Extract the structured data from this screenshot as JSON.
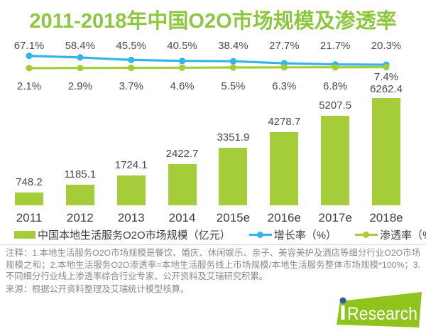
{
  "title": "2011-2018年中国O2O市场规模及渗透率",
  "chart_data": {
    "type": "bar",
    "title": "2011-2018年中国O2O市场规模及渗透率",
    "categories": [
      "2011",
      "2012",
      "2013",
      "2014",
      "2015e",
      "2016e",
      "2017e",
      "2018e"
    ],
    "series": [
      {
        "name": "中国本地生活服务O2O市场规模（亿元）",
        "type": "bar",
        "unit": "亿元",
        "color": "#a5cd39",
        "values": [
          748.2,
          1185.1,
          1724.1,
          2422.7,
          3351.9,
          4278.7,
          5207.5,
          6262.4
        ]
      },
      {
        "name": "增长率（%）",
        "type": "line",
        "unit": "%",
        "color": "#35b4e7",
        "values": [
          67.1,
          58.4,
          45.5,
          40.5,
          38.4,
          27.7,
          21.7,
          20.3
        ]
      },
      {
        "name": "渗透率（%）",
        "type": "line",
        "unit": "%",
        "color": "#a5cd39",
        "values": [
          2.1,
          2.9,
          3.7,
          4.6,
          5.5,
          6.3,
          6.8,
          7.4
        ]
      }
    ],
    "value_labels": true,
    "grid": false,
    "legend_position": "bottom",
    "bar_axis_range": [
      0,
      6262.4
    ]
  },
  "notes": "注释：1.本地生活服务O2O市场规模是餐饮、婚庆、休闲娱乐、亲子、美容美护及酒店等细分行业O2O市场规模之和；2.本地生活服务O2O渗透率=本地生活服务线上市场规模/本地生活服务整体市场规模*100%；3.不同细分行业线上渗透率综合行业专家、公开资料及艾瑞研究积累。",
  "source": "来源：根据公开资料整理及艾瑞统计模型核算。",
  "logo": {
    "i": "i",
    "text": "Research",
    "green": "#8fc41f",
    "blue": "#2a5ca8"
  },
  "colors": {
    "title": "#8dc63f",
    "bar": "#a5cd39",
    "growth_line": "#35b4e7",
    "penetration_line": "#a5cd39",
    "label_text": "#4a4a4a",
    "note_text": "#8a8a8a",
    "divider": "#d8d8d8"
  }
}
